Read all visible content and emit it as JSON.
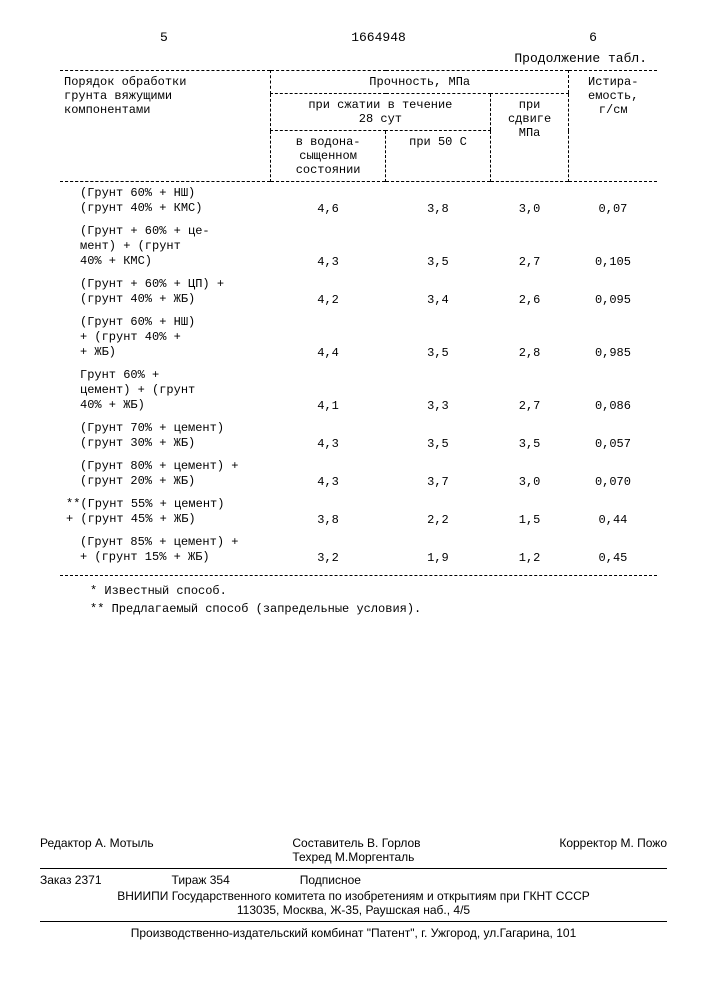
{
  "page_left_num": "5",
  "doc_number": "1664948",
  "page_right_num": "6",
  "continuation": "Продолжение табл.",
  "headers": {
    "col1_l1": "Порядок обработки",
    "col1_l2": "грунта вяжущими",
    "col1_l3": "компонентами",
    "strength": "Прочность, МПа",
    "abrasion_l1": "Истира-",
    "abrasion_l2": "емость,",
    "abrasion_l3": "г/см",
    "comp_l1": "при сжатии в течение",
    "comp_l2": "28 сут",
    "shear_l1": "при",
    "shear_l2": "сдвиге",
    "shear_l3": "МПа",
    "sub1_l1": "в водона-",
    "sub1_l2": "сыщенном",
    "sub1_l3": "состоянии",
    "sub2": "при 50 С"
  },
  "rows": [
    {
      "label": "(Грунт 60% + НШ)\n(грунт 40% + КМС)",
      "v1": "4,6",
      "v2": "3,8",
      "v3": "3,0",
      "v4": "0,07",
      "star": ""
    },
    {
      "label": "(Грунт + 60% + це-\nмент) + (грунт\n40% + КМС)",
      "v1": "4,3",
      "v2": "3,5",
      "v3": "2,7",
      "v4": "0,105",
      "star": ""
    },
    {
      "label": "(Грунт + 60% + ЦП) +\n(грунт 40% + ЖБ)",
      "v1": "4,2",
      "v2": "3,4",
      "v3": "2,6",
      "v4": "0,095",
      "star": ""
    },
    {
      "label": "(Грунт 60% + НШ)\n+ (грунт 40% +\n+ ЖБ)",
      "v1": "4,4",
      "v2": "3,5",
      "v3": "2,8",
      "v4": "0,985",
      "star": ""
    },
    {
      "label": "Грунт 60% +\nцемент) + (грунт\n40% + ЖБ)",
      "v1": "4,1",
      "v2": "3,3",
      "v3": "2,7",
      "v4": "0,086",
      "star": ""
    },
    {
      "label": "(Грунт 70% + цемент)\n(грунт 30% + ЖБ)",
      "v1": "4,3",
      "v2": "3,5",
      "v3": "3,5",
      "v4": "0,057",
      "star": ""
    },
    {
      "label": "(Грунт 80% + цемент) +\n(грунт 20% + ЖБ)",
      "v1": "4,3",
      "v2": "3,7",
      "v3": "3,0",
      "v4": "0,070",
      "star": ""
    },
    {
      "label": "(Грунт 55% + цемент)\n+ (грунт 45% + ЖБ)",
      "v1": "3,8",
      "v2": "2,2",
      "v3": "1,5",
      "v4": "0,44",
      "star": "**"
    },
    {
      "label": "(Грунт 85% + цемент) +\n+ (грунт 15% + ЖБ)",
      "v1": "3,2",
      "v2": "1,9",
      "v3": "1,2",
      "v4": "0,45",
      "star": ""
    }
  ],
  "note1": "* Известный способ.",
  "note2": "** Предлагаемый способ (запредельные условия).",
  "footer": {
    "compiler": "Составитель В. Горлов",
    "editor": "Редактор А. Мотыль",
    "techred": "Техред М.Моргенталь",
    "corrector": "Корректор   М. Пожо",
    "order": "Заказ 2371",
    "tirage": "Тираж 354",
    "subscr": "Подписное",
    "org": "ВНИИПИ Государственного комитета по изобретениям и открытиям при ГКНТ СССР",
    "addr": "113035, Москва, Ж-35, Раушская наб., 4/5",
    "printer": "Производственно-издательский комбинат \"Патент\", г. Ужгород, ул.Гагарина, 101"
  }
}
